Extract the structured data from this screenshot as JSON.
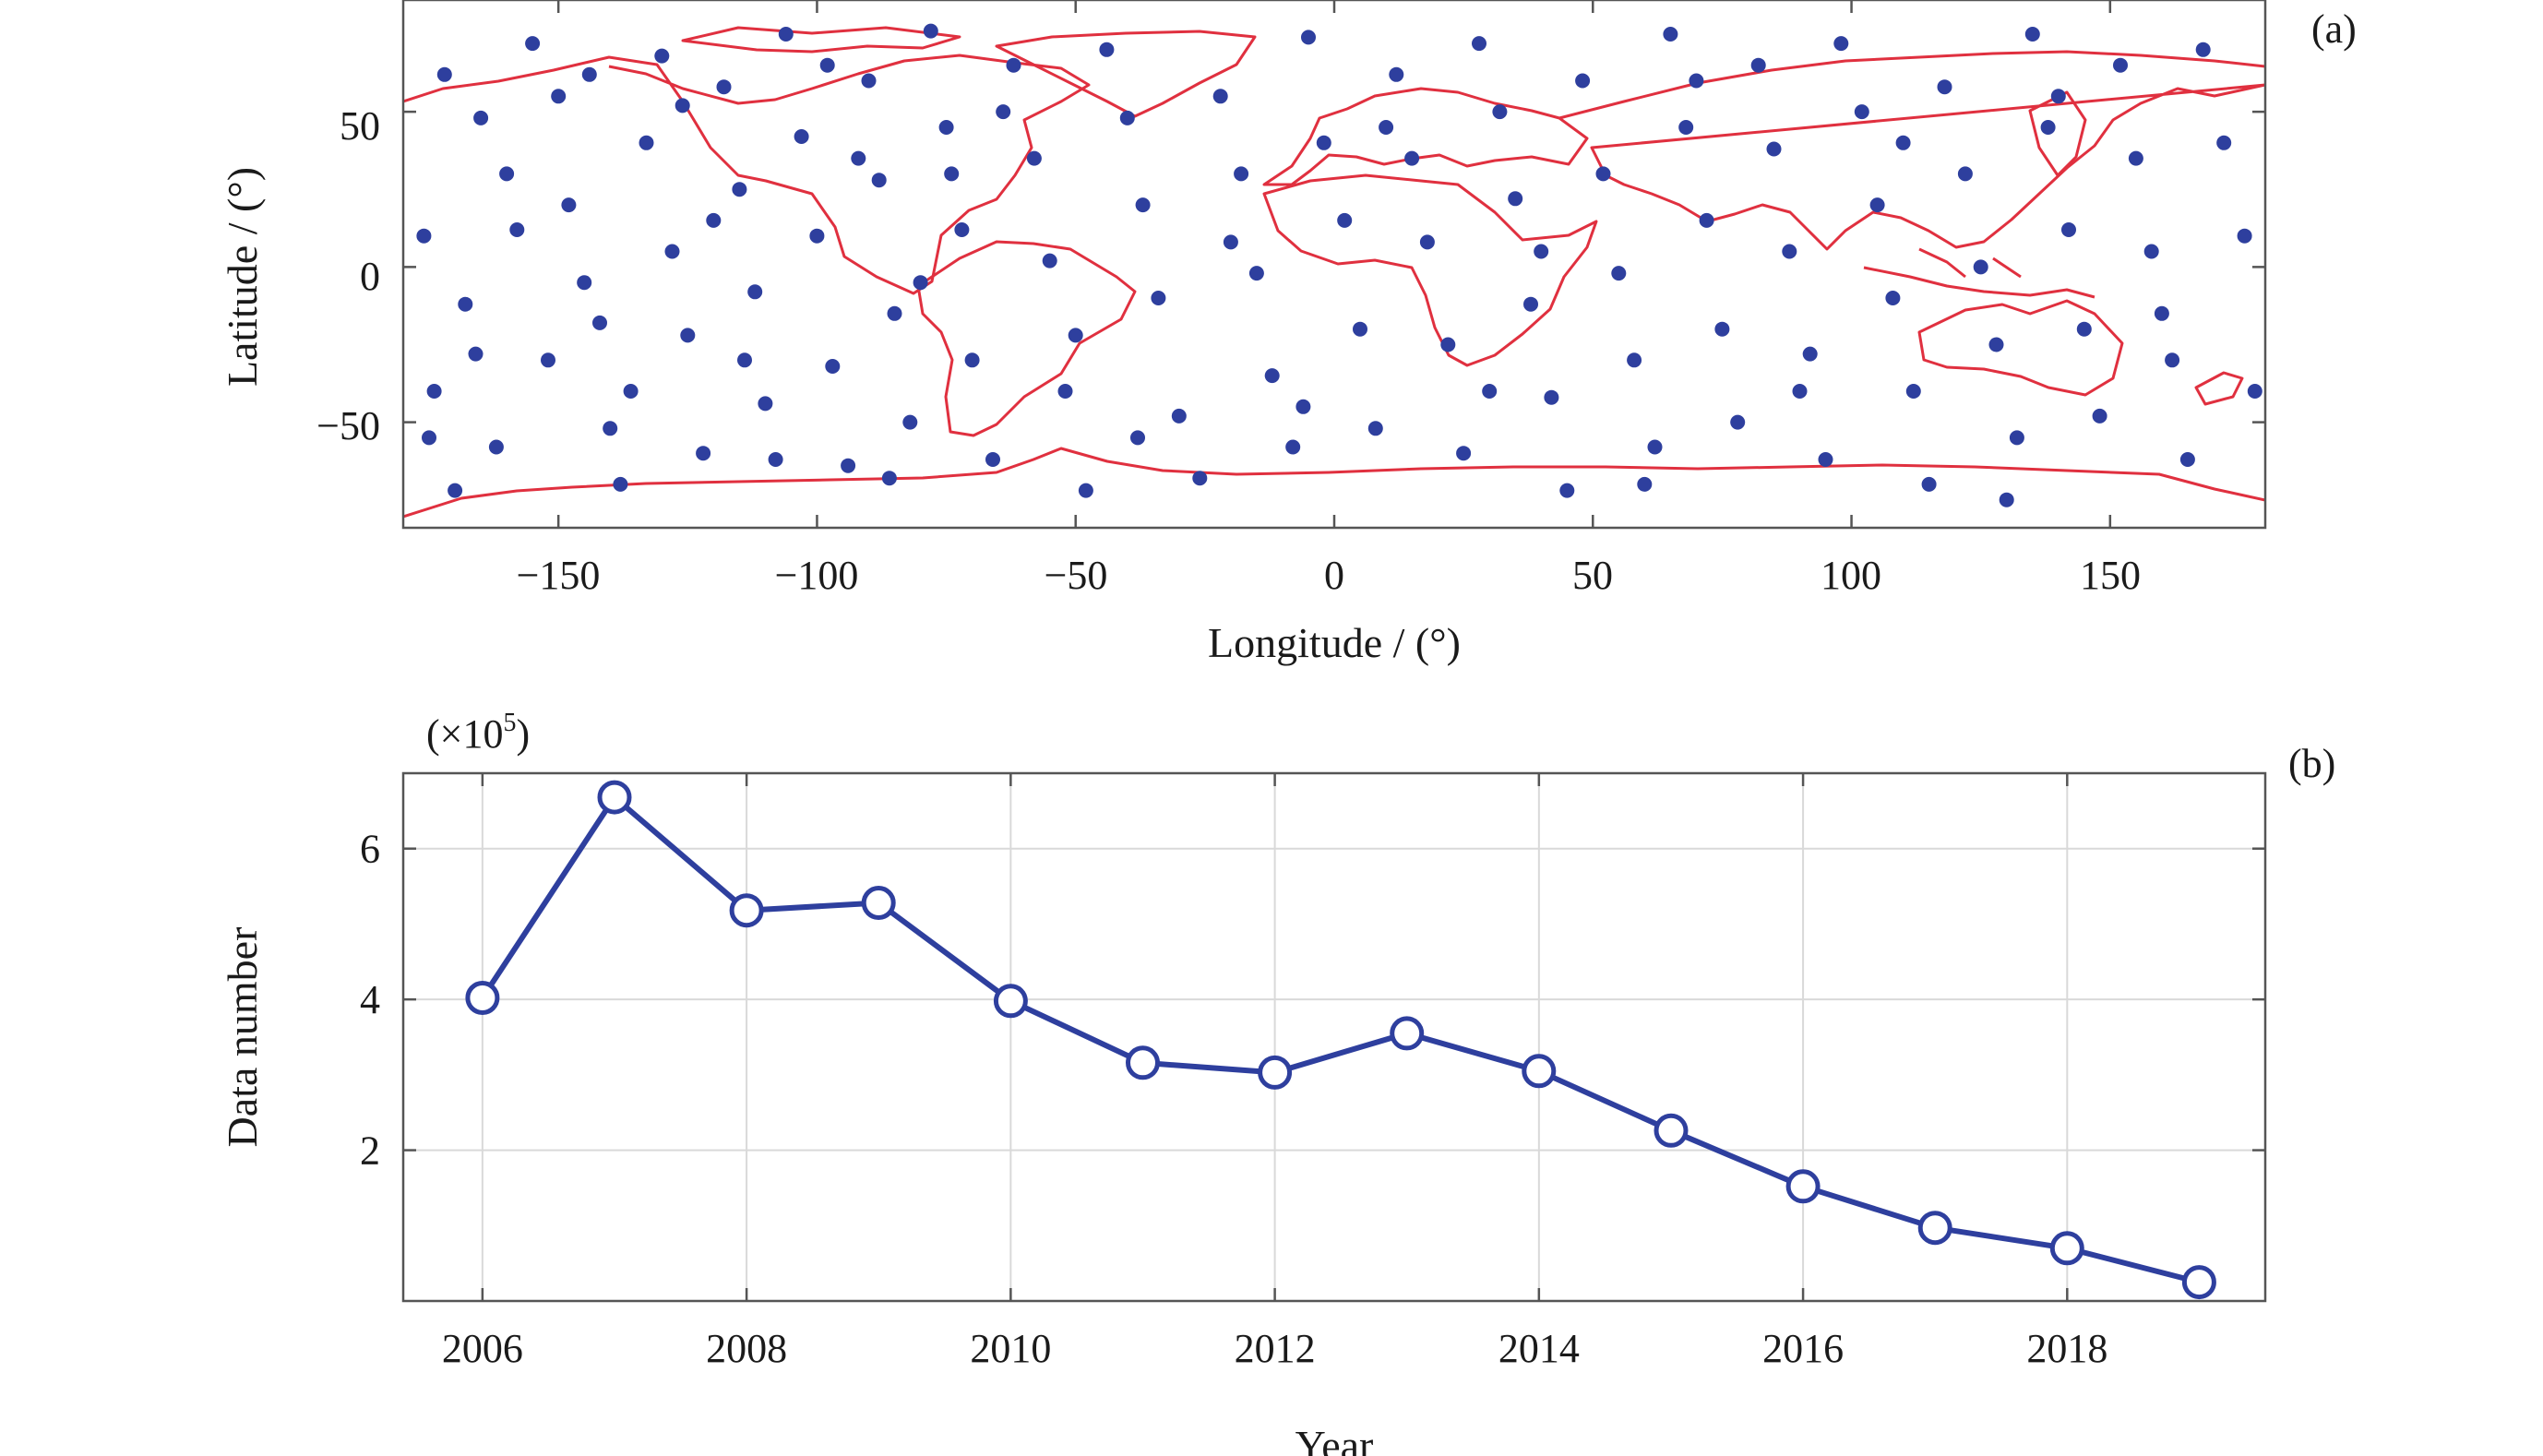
{
  "colors": {
    "points": "#2e3f9e",
    "coastline": "#e0303f",
    "line": "#2e3f9e",
    "grid": "#d9d9d9",
    "axis": "#555555"
  },
  "chart_data": [
    {
      "type": "scatter",
      "panel_label": "(a)",
      "xlabel": "Longitude / (°)",
      "ylabel": "Latitude / (°)",
      "xlim": [
        -180,
        180
      ],
      "ylim": [
        -84,
        86
      ],
      "xticks": [
        -150,
        -100,
        -50,
        0,
        50,
        100,
        150
      ],
      "xtick_labels": [
        "−150",
        "−100",
        "−50",
        "0",
        "50",
        "100",
        "150"
      ],
      "yticks": [
        -50,
        0,
        50
      ],
      "ytick_labels": [
        "−50",
        "0",
        "50"
      ],
      "grid": false,
      "overlay": "world coastline outlines (red)",
      "points": [
        [
          -172,
          62
        ],
        [
          -165,
          48
        ],
        [
          -160,
          30
        ],
        [
          -176,
          10
        ],
        [
          -168,
          -12
        ],
        [
          -174,
          -40
        ],
        [
          -162,
          -58
        ],
        [
          -170,
          -72
        ],
        [
          -155,
          72
        ],
        [
          -150,
          55
        ],
        [
          -148,
          20
        ],
        [
          -145,
          -5
        ],
        [
          -152,
          -30
        ],
        [
          -140,
          -52
        ],
        [
          -138,
          -70
        ],
        [
          -133,
          40
        ],
        [
          -130,
          68
        ],
        [
          -128,
          5
        ],
        [
          -125,
          -22
        ],
        [
          -122,
          -60
        ],
        [
          -118,
          58
        ],
        [
          -115,
          25
        ],
        [
          -112,
          -8
        ],
        [
          -110,
          -44
        ],
        [
          -106,
          75
        ],
        [
          -103,
          42
        ],
        [
          -100,
          10
        ],
        [
          -97,
          -32
        ],
        [
          -94,
          -64
        ],
        [
          -90,
          60
        ],
        [
          -88,
          28
        ],
        [
          -85,
          -15
        ],
        [
          -82,
          -50
        ],
        [
          -78,
          76
        ],
        [
          -75,
          45
        ],
        [
          -72,
          12
        ],
        [
          -70,
          -30
        ],
        [
          -66,
          -62
        ],
        [
          -62,
          65
        ],
        [
          -58,
          35
        ],
        [
          -55,
          2
        ],
        [
          -52,
          -40
        ],
        [
          -48,
          -72
        ],
        [
          -44,
          70
        ],
        [
          -40,
          48
        ],
        [
          -37,
          20
        ],
        [
          -34,
          -10
        ],
        [
          -30,
          -48
        ],
        [
          -26,
          -68
        ],
        [
          -22,
          55
        ],
        [
          -18,
          30
        ],
        [
          -15,
          -2
        ],
        [
          -12,
          -35
        ],
        [
          -8,
          -58
        ],
        [
          -5,
          74
        ],
        [
          -2,
          40
        ],
        [
          2,
          15
        ],
        [
          5,
          -20
        ],
        [
          8,
          -52
        ],
        [
          12,
          62
        ],
        [
          15,
          35
        ],
        [
          18,
          8
        ],
        [
          22,
          -25
        ],
        [
          25,
          -60
        ],
        [
          28,
          72
        ],
        [
          32,
          50
        ],
        [
          35,
          22
        ],
        [
          38,
          -12
        ],
        [
          42,
          -42
        ],
        [
          45,
          -72
        ],
        [
          48,
          60
        ],
        [
          52,
          30
        ],
        [
          55,
          -2
        ],
        [
          58,
          -30
        ],
        [
          62,
          -58
        ],
        [
          65,
          75
        ],
        [
          68,
          45
        ],
        [
          72,
          15
        ],
        [
          75,
          -20
        ],
        [
          78,
          -50
        ],
        [
          82,
          65
        ],
        [
          85,
          38
        ],
        [
          88,
          5
        ],
        [
          92,
          -28
        ],
        [
          95,
          -62
        ],
        [
          98,
          72
        ],
        [
          102,
          50
        ],
        [
          105,
          20
        ],
        [
          108,
          -10
        ],
        [
          112,
          -40
        ],
        [
          115,
          -70
        ],
        [
          118,
          58
        ],
        [
          122,
          30
        ],
        [
          125,
          0
        ],
        [
          128,
          -25
        ],
        [
          132,
          -55
        ],
        [
          135,
          75
        ],
        [
          138,
          45
        ],
        [
          142,
          12
        ],
        [
          145,
          -20
        ],
        [
          148,
          -48
        ],
        [
          152,
          65
        ],
        [
          155,
          35
        ],
        [
          158,
          5
        ],
        [
          162,
          -30
        ],
        [
          165,
          -62
        ],
        [
          168,
          70
        ],
        [
          172,
          40
        ],
        [
          176,
          10
        ],
        [
          178,
          -40
        ],
        [
          -166,
          -28
        ],
        [
          -144,
          62
        ],
        [
          -136,
          -40
        ],
        [
          -120,
          15
        ],
        [
          -108,
          -62
        ],
        [
          -92,
          35
        ],
        [
          -80,
          -5
        ],
        [
          -64,
          50
        ],
        [
          -50,
          -22
        ],
        [
          -38,
          -55
        ],
        [
          -20,
          8
        ],
        [
          -6,
          -45
        ],
        [
          10,
          45
        ],
        [
          30,
          -40
        ],
        [
          40,
          5
        ],
        [
          60,
          -70
        ],
        [
          70,
          60
        ],
        [
          90,
          -40
        ],
        [
          110,
          40
        ],
        [
          130,
          -75
        ],
        [
          140,
          55
        ],
        [
          160,
          -15
        ],
        [
          -175,
          -55
        ],
        [
          -158,
          12
        ],
        [
          -142,
          -18
        ],
        [
          -126,
          52
        ],
        [
          -114,
          -30
        ],
        [
          -98,
          65
        ],
        [
          -86,
          -68
        ],
        [
          -74,
          30
        ]
      ]
    },
    {
      "type": "line",
      "panel_label": "(b)",
      "xlabel": "Year",
      "ylabel": "Data number",
      "y_multiplier_label": "(×10",
      "y_multiplier_exponent": "5",
      "xlim": [
        2005.4,
        2019.5
      ],
      "ylim": [
        0,
        7
      ],
      "xticks": [
        2006,
        2008,
        2010,
        2012,
        2014,
        2016,
        2018
      ],
      "yticks": [
        2,
        4,
        6
      ],
      "grid": true,
      "marker": "circle",
      "x": [
        2006,
        2007,
        2008,
        2009,
        2010,
        2011,
        2012,
        2013,
        2014,
        2015,
        2016,
        2017,
        2018,
        2019
      ],
      "series": [
        {
          "values": [
            4.02,
            6.68,
            5.18,
            5.28,
            3.98,
            3.16,
            3.03,
            3.55,
            3.05,
            2.26,
            1.52,
            0.97,
            0.7,
            0.25
          ]
        }
      ]
    }
  ]
}
